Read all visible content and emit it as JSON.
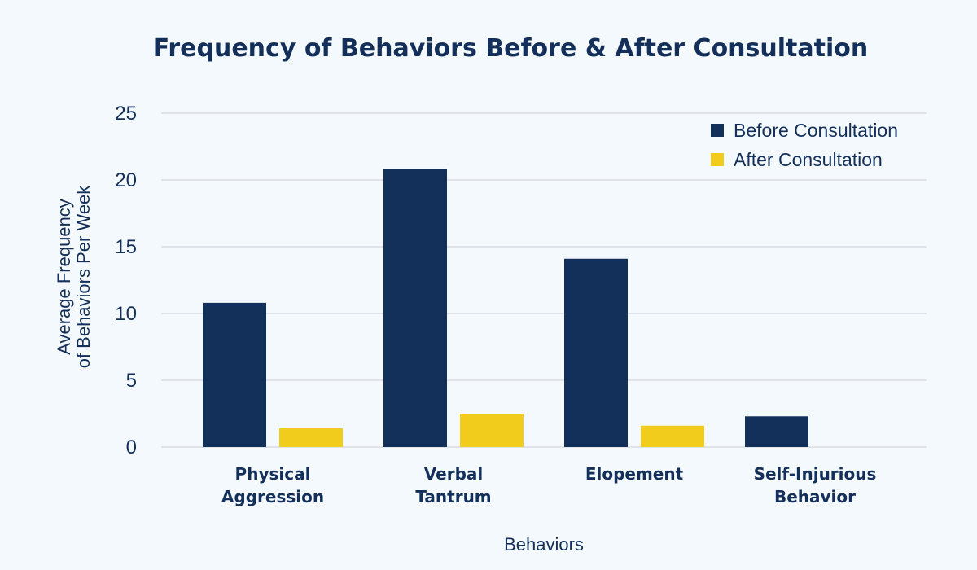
{
  "chart_data": {
    "type": "bar",
    "title": "Frequency of Behaviors Before & After Consultation",
    "xlabel": "Behaviors",
    "ylabel_lines": [
      "Average Frequency",
      "of Behaviors Per Week"
    ],
    "categories": [
      [
        "Physical",
        "Aggression"
      ],
      [
        "Verbal",
        "Tantrum"
      ],
      [
        "Elopement"
      ],
      [
        "Self-Injurious",
        "Behavior"
      ]
    ],
    "series": [
      {
        "name": "Before Consultation",
        "color": "#13305a",
        "values": [
          10.8,
          20.8,
          14.1,
          2.3
        ]
      },
      {
        "name": "After Consultation",
        "color": "#f2cc1d",
        "values": [
          1.4,
          2.5,
          1.6,
          0
        ]
      }
    ],
    "ylim": [
      0,
      25
    ],
    "yticks": [
      0,
      5,
      10,
      15,
      20,
      25
    ],
    "grid": true,
    "legend_position": "top-right"
  }
}
